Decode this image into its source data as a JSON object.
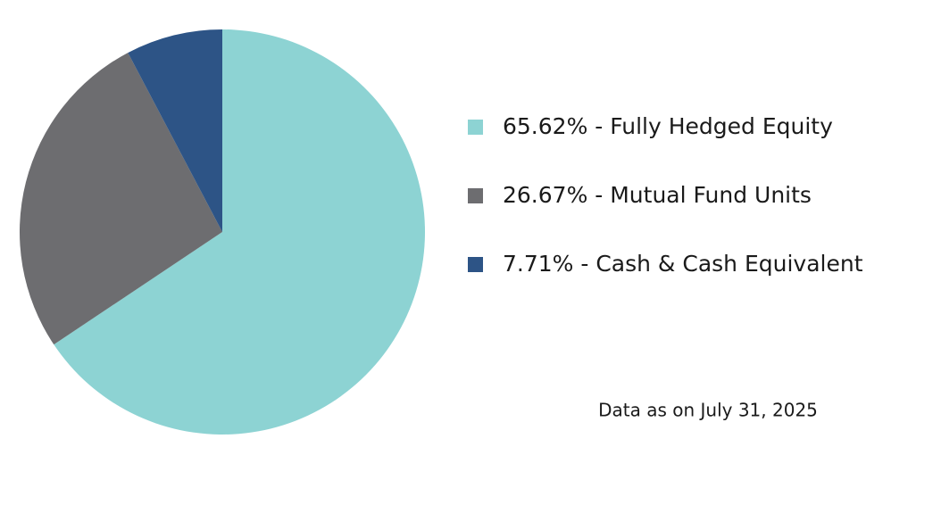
{
  "chart_data": {
    "type": "pie",
    "categories": [
      "65.62% - Fully Hedged Equity",
      "26.67% - Mutual Fund Units",
      "7.71% - Cash & Cash Equivalent"
    ],
    "values": [
      65.62,
      26.67,
      7.71
    ],
    "colors": [
      "#8dd3d3",
      "#6d6d70",
      "#2d5486"
    ],
    "annotation": "Data as on July 31, 2025"
  }
}
